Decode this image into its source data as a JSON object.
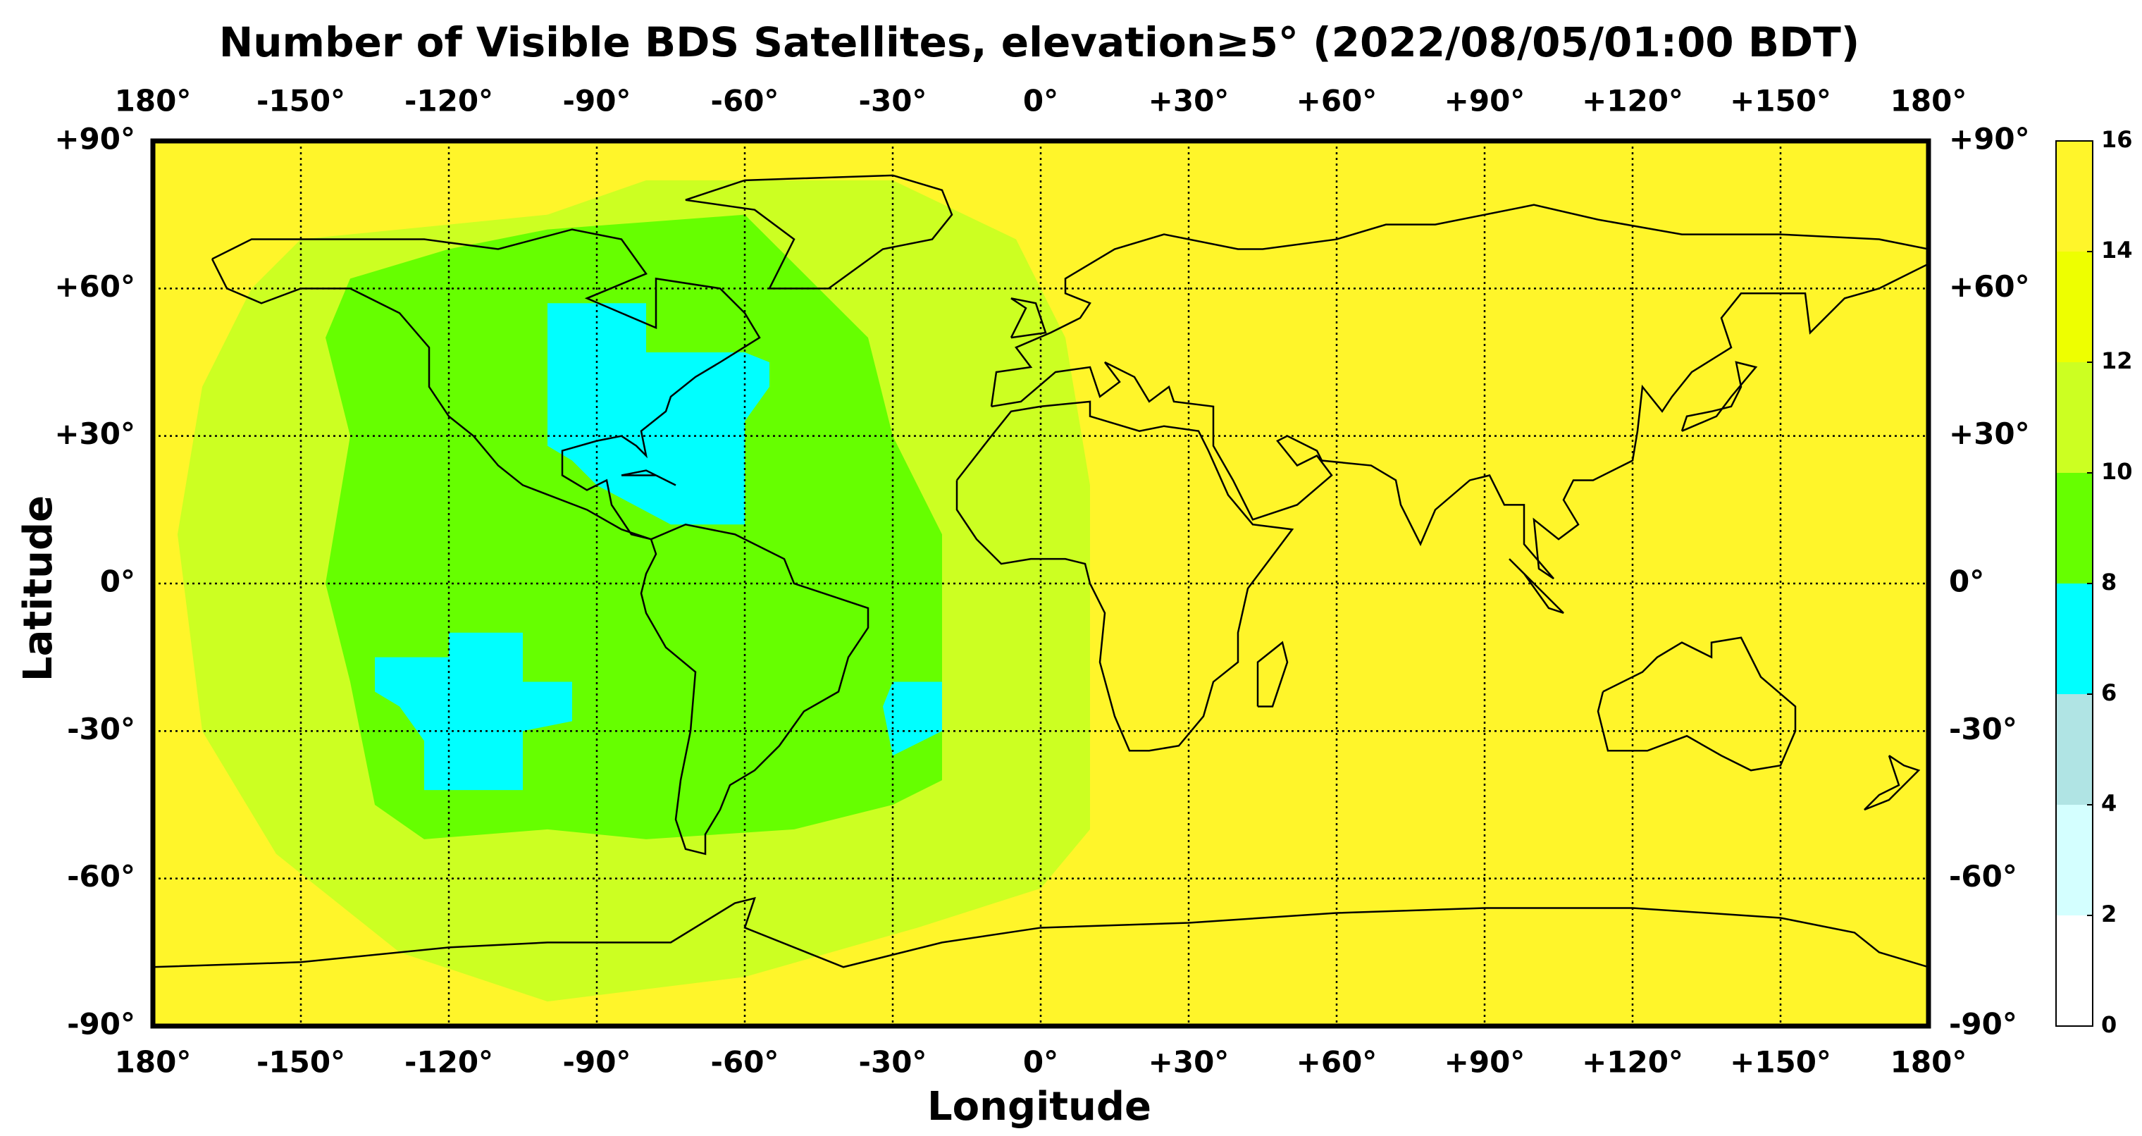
{
  "chart_data": {
    "type": "heatmap-map",
    "title": "Number of Visible BDS Satellites, elevation≥5° (2022/08/05/01:00 BDT)",
    "x_label": "Longitude",
    "y_label": "Latitude",
    "xlim": [
      -180,
      180
    ],
    "ylim": [
      -90,
      90
    ],
    "xticks": [
      {
        "value": -180,
        "label": "180°"
      },
      {
        "value": -150,
        "label": "-150°"
      },
      {
        "value": -120,
        "label": "-120°"
      },
      {
        "value": -90,
        "label": "-90°"
      },
      {
        "value": -60,
        "label": "-60°"
      },
      {
        "value": -30,
        "label": "-30°"
      },
      {
        "value": 0,
        "label": "0°"
      },
      {
        "value": 30,
        "label": "+30°"
      },
      {
        "value": 60,
        "label": "+60°"
      },
      {
        "value": 90,
        "label": "+90°"
      },
      {
        "value": 120,
        "label": "+120°"
      },
      {
        "value": 150,
        "label": "+150°"
      },
      {
        "value": 180,
        "label": "180°"
      }
    ],
    "yticks": [
      {
        "value": 90,
        "label": "+90°"
      },
      {
        "value": 60,
        "label": "+60°"
      },
      {
        "value": 30,
        "label": "+30°"
      },
      {
        "value": 0,
        "label": "0°"
      },
      {
        "value": -30,
        "label": "-30°"
      },
      {
        "value": -60,
        "label": "-60°"
      },
      {
        "value": -90,
        "label": "-90°"
      }
    ],
    "grid": true,
    "colorbar": {
      "ticks": [
        0,
        2,
        4,
        6,
        8,
        10,
        12,
        14,
        16
      ],
      "colors": [
        "#ffffff",
        "#d4ffff",
        "#b0e4e4",
        "#00ffff",
        "#66ff00",
        "#ccff22",
        "#eeff00",
        "#fff52a"
      ]
    },
    "background_value": 15,
    "regions": [
      {
        "value": 11,
        "polygon": [
          [
            -150,
            70
          ],
          [
            -100,
            75
          ],
          [
            -80,
            82
          ],
          [
            -30,
            82
          ],
          [
            -5,
            70
          ],
          [
            5,
            50
          ],
          [
            10,
            20
          ],
          [
            10,
            -50
          ],
          [
            0,
            -62
          ],
          [
            -25,
            -70
          ],
          [
            -60,
            -80
          ],
          [
            -100,
            -85
          ],
          [
            -130,
            -75
          ],
          [
            -155,
            -55
          ],
          [
            -170,
            -30
          ],
          [
            -175,
            10
          ],
          [
            -170,
            40
          ],
          [
            -160,
            60
          ]
        ]
      },
      {
        "value": 9,
        "polygon": [
          [
            -140,
            62
          ],
          [
            -120,
            68
          ],
          [
            -100,
            72
          ],
          [
            -60,
            75
          ],
          [
            -45,
            60
          ],
          [
            -35,
            50
          ],
          [
            -30,
            30
          ],
          [
            -20,
            10
          ],
          [
            -20,
            -40
          ],
          [
            -30,
            -45
          ],
          [
            -50,
            -50
          ],
          [
            -80,
            -52
          ],
          [
            -100,
            -50
          ],
          [
            -125,
            -52
          ],
          [
            -135,
            -45
          ],
          [
            -140,
            -20
          ],
          [
            -145,
            0
          ],
          [
            -140,
            30
          ],
          [
            -145,
            50
          ]
        ]
      },
      {
        "value": 7,
        "polygon": [
          [
            -100,
            57
          ],
          [
            -80,
            57
          ],
          [
            -80,
            47
          ],
          [
            -60,
            47
          ],
          [
            -55,
            45
          ],
          [
            -55,
            40
          ],
          [
            -60,
            33
          ],
          [
            -60,
            12
          ],
          [
            -75,
            12
          ],
          [
            -90,
            20
          ],
          [
            -95,
            25
          ],
          [
            -100,
            28
          ]
        ]
      },
      {
        "value": 7,
        "polygon": [
          [
            -120,
            -10
          ],
          [
            -105,
            -10
          ],
          [
            -105,
            -20
          ],
          [
            -95,
            -20
          ],
          [
            -95,
            -28
          ],
          [
            -105,
            -30
          ],
          [
            -105,
            -42
          ],
          [
            -125,
            -42
          ],
          [
            -125,
            -32
          ],
          [
            -130,
            -25
          ],
          [
            -135,
            -22
          ],
          [
            -135,
            -15
          ],
          [
            -120,
            -15
          ]
        ]
      },
      {
        "value": 7,
        "polygon": [
          [
            -30,
            -20
          ],
          [
            -20,
            -20
          ],
          [
            -20,
            -30
          ],
          [
            -30,
            -35
          ],
          [
            -32,
            -25
          ]
        ]
      }
    ]
  }
}
